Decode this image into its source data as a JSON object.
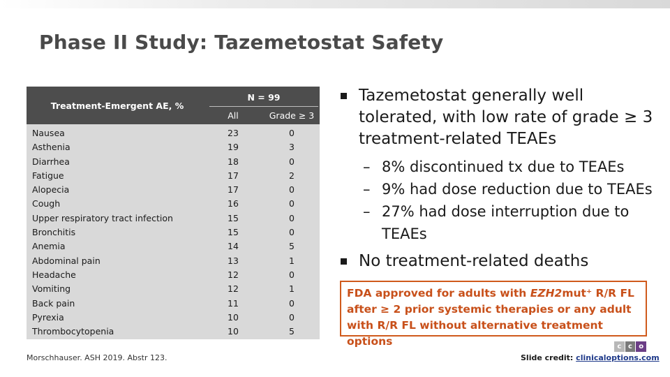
{
  "title": "Phase II Study: Tazemetostat Safety",
  "table": {
    "header_ae": "Treatment-Emergent AE, %",
    "header_n": "N = 99",
    "header_all": "All",
    "header_grade3": "Grade ≥ 3",
    "rows": [
      {
        "name": "Nausea",
        "all": "23",
        "grade3": "0"
      },
      {
        "name": "Asthenia",
        "all": "19",
        "grade3": "3"
      },
      {
        "name": "Diarrhea",
        "all": "18",
        "grade3": "0"
      },
      {
        "name": "Fatigue",
        "all": "17",
        "grade3": "2"
      },
      {
        "name": "Alopecia",
        "all": "17",
        "grade3": "0"
      },
      {
        "name": "Cough",
        "all": "16",
        "grade3": "0"
      },
      {
        "name": "Upper respiratory tract infection",
        "all": "15",
        "grade3": "0"
      },
      {
        "name": "Bronchitis",
        "all": "15",
        "grade3": "0"
      },
      {
        "name": "Anemia",
        "all": "14",
        "grade3": "5"
      },
      {
        "name": "Abdominal pain",
        "all": "13",
        "grade3": "1"
      },
      {
        "name": "Headache",
        "all": "12",
        "grade3": "0"
      },
      {
        "name": "Vomiting",
        "all": "12",
        "grade3": "1"
      },
      {
        "name": "Back pain",
        "all": "11",
        "grade3": "0"
      },
      {
        "name": "Pyrexia",
        "all": "10",
        "grade3": "0"
      },
      {
        "name": "Thrombocytopenia",
        "all": "10",
        "grade3": "5"
      }
    ]
  },
  "bullets": {
    "main1": "Tazemetostat generally well tolerated, with low rate of grade ≥ 3 treatment-related TEAEs",
    "subs": [
      "8% discontinued tx due to TEAEs",
      "9% had dose reduction due to TEAEs",
      "27% had dose interruption due to TEAEs"
    ],
    "main2": "No treatment-related deaths"
  },
  "callout": {
    "prefix": "FDA approved for adults with ",
    "gene": "EZH2",
    "suffix": "mut⁺ R/R FL after ≥ 2 prior systemic therapies or any adult with R/R FL without alternative treatment options"
  },
  "reference": "Morschhauser. ASH 2019. Abstr 123.",
  "credit": {
    "label": "Slide credit: ",
    "link": "clinicaloptions.com"
  },
  "logo": {
    "letters": [
      "c",
      "c",
      "o"
    ]
  },
  "colors": {
    "header_bg": "#4d4d4d",
    "table_bg": "#d9d9d9",
    "callout": "#c8501a",
    "title": "#4a4a4a"
  }
}
